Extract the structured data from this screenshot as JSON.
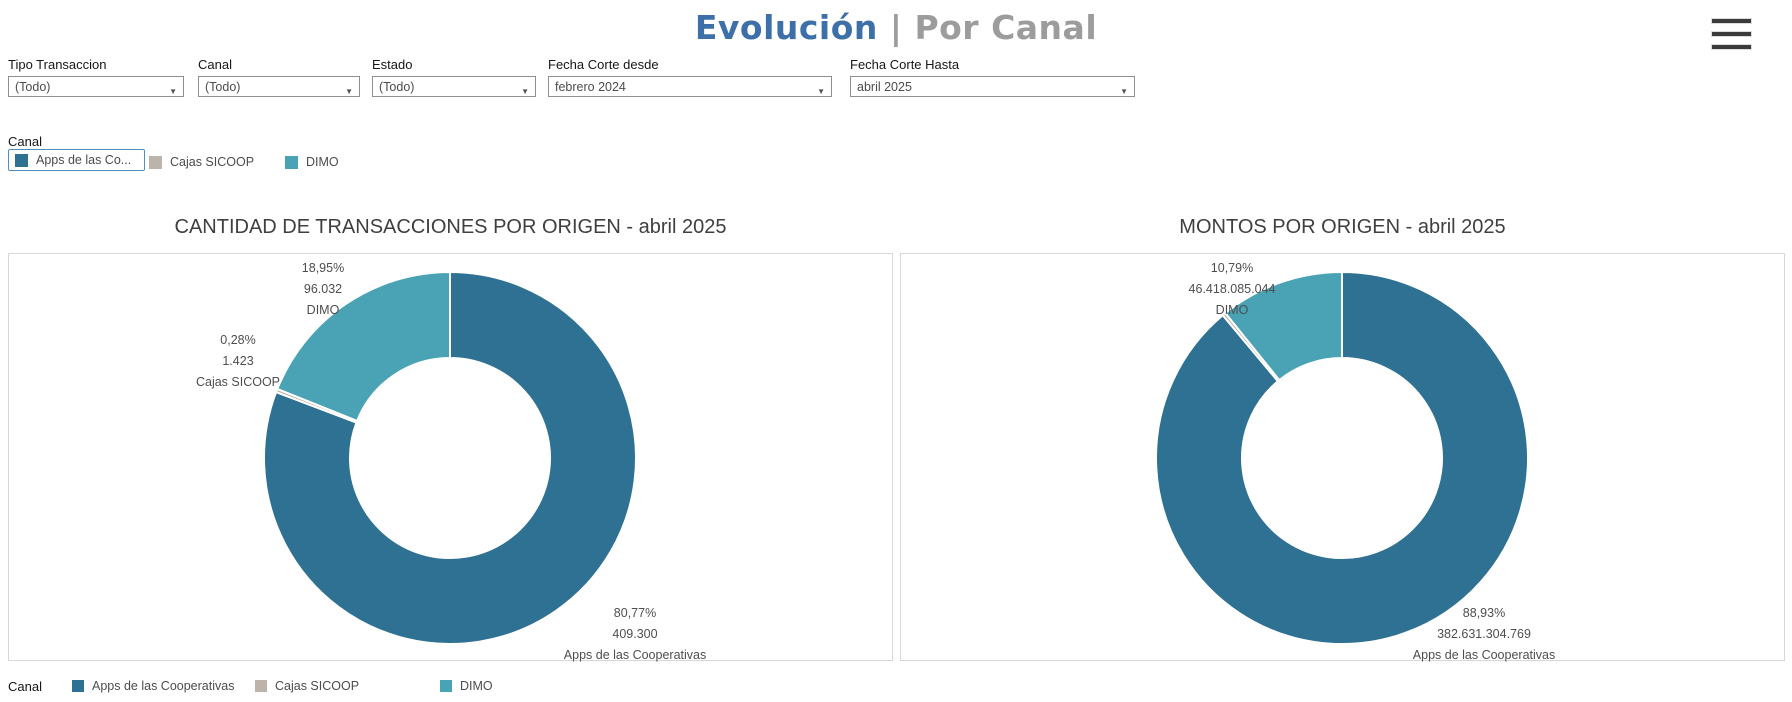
{
  "header": {
    "title_primary": "Evolución",
    "title_separator": " | ",
    "title_secondary": "Por Canal"
  },
  "icons": {
    "menu": "hamburger-icon",
    "dropdown_arrow": "▼"
  },
  "filters": {
    "items": [
      {
        "label": "Tipo Transaccion",
        "value": "(Todo)"
      },
      {
        "label": "Canal",
        "value": "(Todo)"
      },
      {
        "label": "Estado",
        "value": "(Todo)"
      },
      {
        "label": "Fecha Corte desde",
        "value": "febrero 2024"
      },
      {
        "label": "Fecha Corte Hasta",
        "value": "abril 2025"
      }
    ]
  },
  "highlighter": {
    "title": "Canal",
    "items": [
      {
        "label": "Apps de las Co...",
        "color": "#2e7193",
        "selected": true
      },
      {
        "label": "Cajas SICOOP",
        "color": "#bcb3ab",
        "selected": false
      },
      {
        "label": "DIMO",
        "color": "#4aa3b5",
        "selected": false
      }
    ]
  },
  "chart_data": [
    {
      "type": "pie",
      "donut": true,
      "title": "CANTIDAD DE TRANSACCIONES POR ORIGEN - abril 2025",
      "legend_position": "bottom",
      "segments": [
        {
          "name": "Apps de las Cooperativas",
          "percent": 80.77,
          "percent_label": "80,77%",
          "value": 409300,
          "value_label": "409.300",
          "color": "#2e7193"
        },
        {
          "name": "Cajas SICOOP",
          "percent": 0.28,
          "percent_label": "0,28%",
          "value": 1423,
          "value_label": "1.423",
          "color": "#bcb3ab"
        },
        {
          "name": "DIMO",
          "percent": 18.95,
          "percent_label": "18,95%",
          "value": 96032,
          "value_label": "96.032",
          "color": "#4aa3b5"
        }
      ]
    },
    {
      "type": "pie",
      "donut": true,
      "title": "MONTOS POR ORIGEN -  abril 2025",
      "legend_position": "bottom",
      "segments": [
        {
          "name": "Apps de las Cooperativas",
          "percent": 88.93,
          "percent_label": "88,93%",
          "value": 382631304769,
          "value_label": "382.631.304.769",
          "color": "#2e7193"
        },
        {
          "name": "Cajas SICOOP",
          "percent": 0.28,
          "color": "#bcb3ab"
        },
        {
          "name": "DIMO",
          "percent": 10.79,
          "percent_label": "10,79%",
          "value": 46418085044,
          "value_label": "46.418.085.044",
          "color": "#4aa3b5"
        }
      ]
    }
  ],
  "bottom_legend": {
    "title": "Canal",
    "items": [
      {
        "label": "Apps de las Cooperativas",
        "color": "#2e7193"
      },
      {
        "label": "Cajas SICOOP",
        "color": "#bcb3ab"
      },
      {
        "label": "DIMO",
        "color": "#4aa3b5"
      }
    ]
  }
}
